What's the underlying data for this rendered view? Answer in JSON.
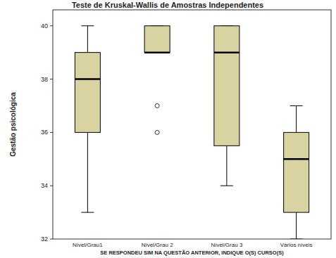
{
  "chart_data": {
    "type": "box",
    "title": "Teste de Kruskal-Wallis de Amostras Independentes",
    "y_label": "Gestão psicológica",
    "x_label": "SE RESPONDEU SIM NA QUESTÃO ANTERIOR, INDIQUE O(S) CURSO(S)",
    "categories": [
      "Nível/Grau1",
      "Nível/Grau 2",
      "Nível/Grau 3",
      "Vários níveis"
    ],
    "values": [
      {
        "low": 33,
        "q1": 36,
        "median": 38,
        "q3": 39,
        "high": 40,
        "outliers": []
      },
      {
        "low": 39,
        "q1": 39,
        "median": 39,
        "q3": 40,
        "high": 40,
        "outliers": [
          37,
          36
        ]
      },
      {
        "low": 34,
        "q1": 35.5,
        "median": 39,
        "q3": 40,
        "high": 40,
        "outliers": []
      },
      {
        "low": 32,
        "q1": 33,
        "median": 35,
        "q3": 36,
        "high": 37,
        "outliers": []
      }
    ],
    "color": "#d9d3a1",
    "ylim": [
      32,
      40.6
    ],
    "yticks": [
      32,
      34,
      36,
      38,
      40
    ]
  }
}
